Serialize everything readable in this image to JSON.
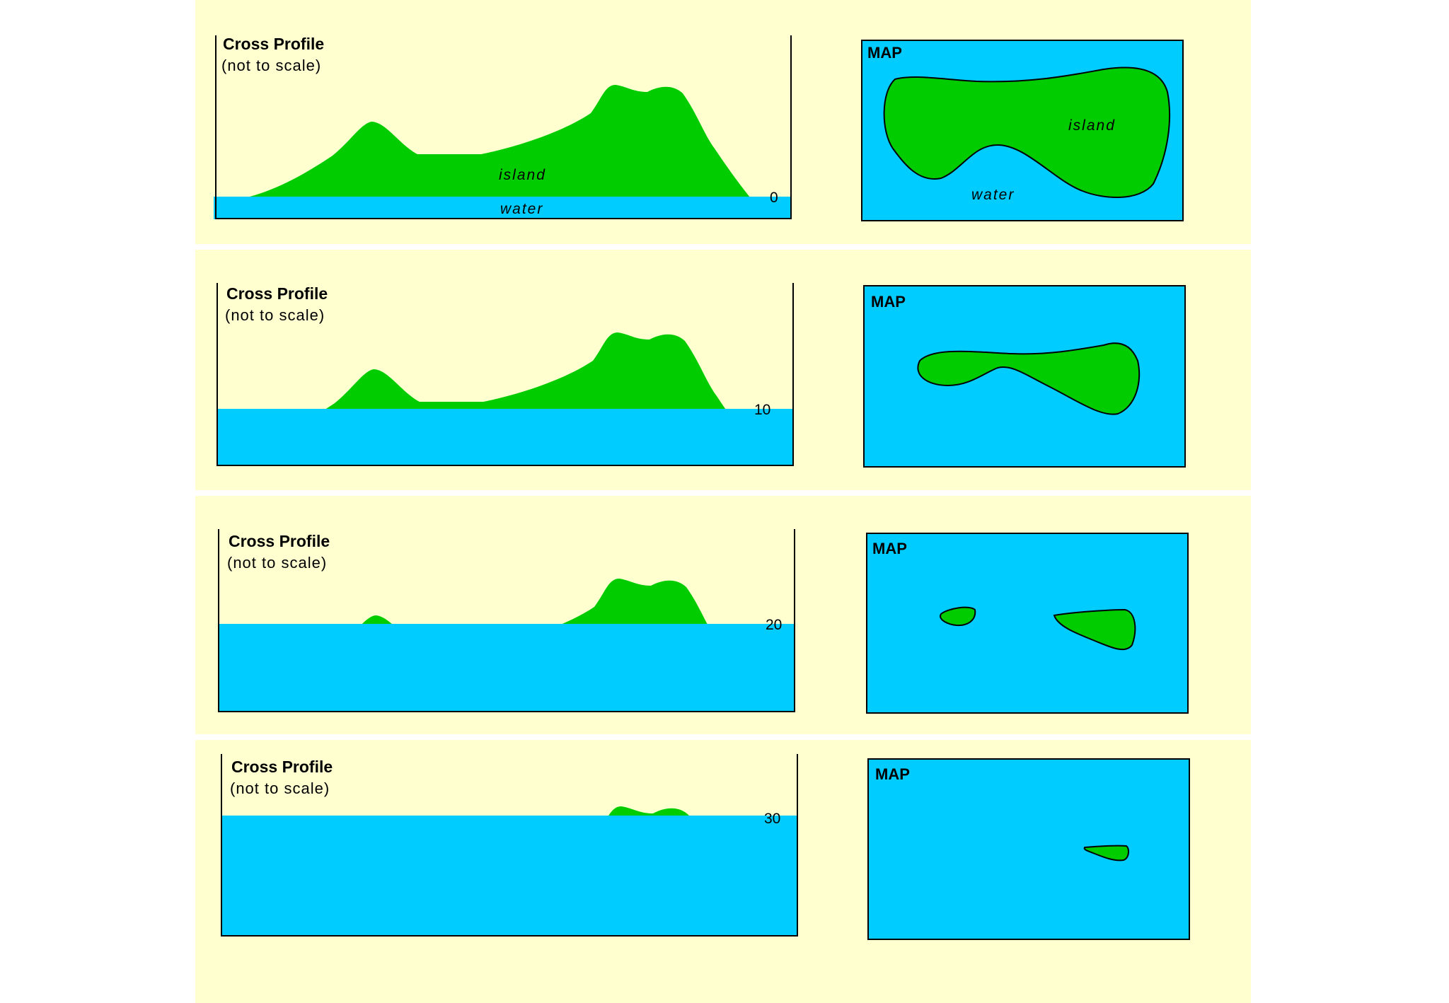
{
  "colors": {
    "background": "#ffffd0",
    "water": "#00ccff",
    "land": "#00cc00",
    "outline": "#000000"
  },
  "rows": [
    {
      "profile": {
        "title": "Cross Profile",
        "subtitle": "(not to scale)",
        "water_level": "0",
        "land_label": "island",
        "water_label": "water"
      },
      "map": {
        "title": "MAP",
        "land_label": "island",
        "water_label": "water"
      }
    },
    {
      "profile": {
        "title": "Cross Profile",
        "subtitle": "(not to scale)",
        "water_level": "10"
      },
      "map": {
        "title": "MAP"
      }
    },
    {
      "profile": {
        "title": "Cross Profile",
        "subtitle": "(not to scale)",
        "water_level": "20"
      },
      "map": {
        "title": "MAP"
      }
    },
    {
      "profile": {
        "title": "Cross Profile",
        "subtitle": "(not to scale)",
        "water_level": "30"
      },
      "map": {
        "title": "MAP"
      }
    }
  ]
}
